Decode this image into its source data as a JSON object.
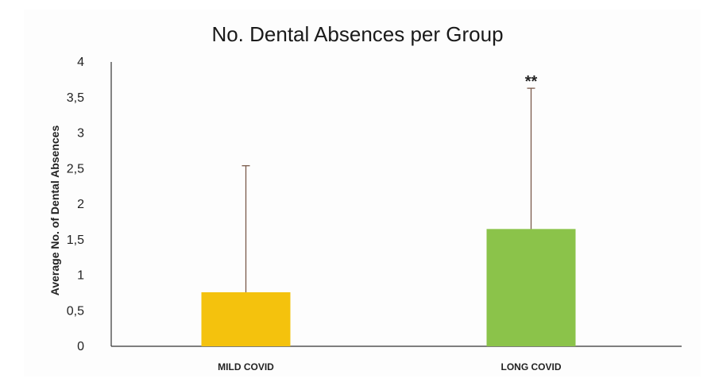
{
  "chart_data": {
    "type": "bar",
    "title": "No. Dental Absences per Group",
    "xlabel": "",
    "ylabel": "Average No. of Dental Absences",
    "categories": [
      "MILD COVID",
      "LONG COVID"
    ],
    "values": [
      0.76,
      1.65
    ],
    "error_upper": [
      2.54,
      3.63
    ],
    "bar_colors": [
      "#F4C20D",
      "#8BC34A"
    ],
    "annotations": [
      "",
      "**"
    ],
    "ylim": [
      0,
      4
    ],
    "yticks": [
      "0",
      "0,5",
      "1",
      "1,5",
      "2",
      "2,5",
      "3",
      "3,5",
      "4"
    ],
    "grid": false,
    "legend": "none"
  }
}
